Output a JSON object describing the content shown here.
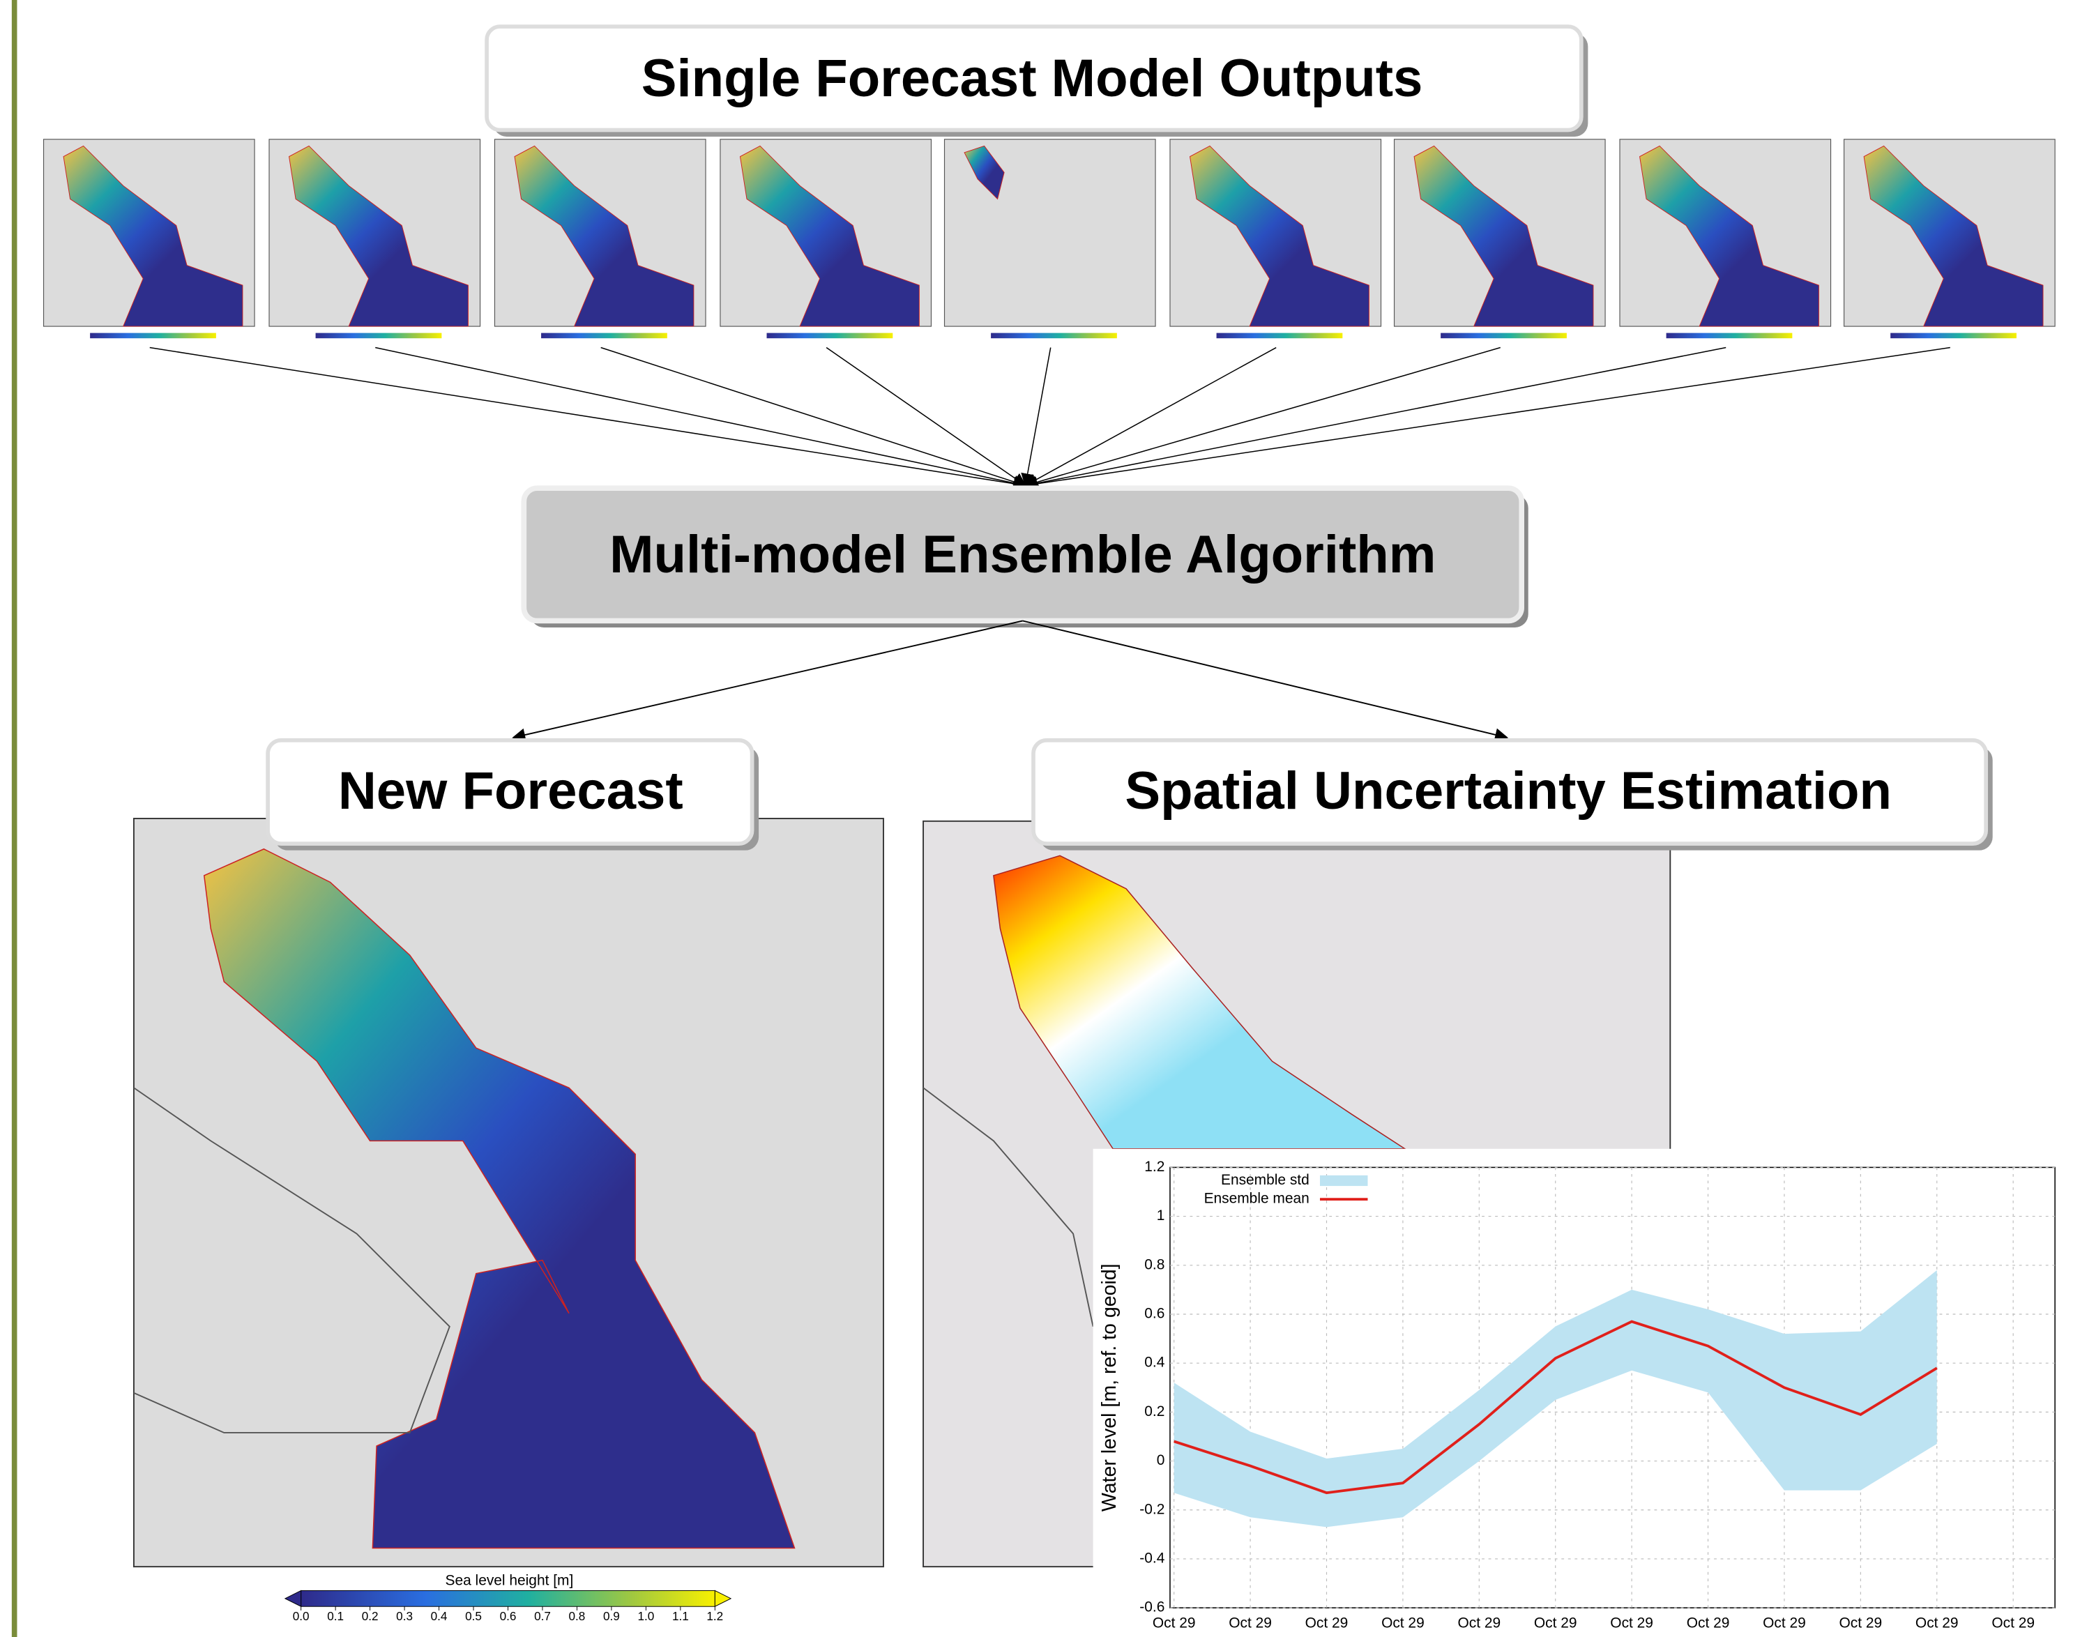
{
  "header": {
    "title": "Single Forecast Model Outputs"
  },
  "algorithm": {
    "label": "Multi-model Ensemble Algorithm"
  },
  "outputs": [
    {
      "label": "New Forecast"
    },
    {
      "label": "Spatial Uncertainty Estimation"
    }
  ],
  "colorbar": {
    "label": "Sea level height [m]",
    "lim": [
      0,
      1.2
    ],
    "ticks": [
      {
        "value": 0,
        "label": "0.0"
      },
      0.1,
      0.2,
      0.3,
      0.4,
      0.5,
      0.6,
      0.7,
      0.8,
      0.9,
      {
        "value": 1,
        "label": "1.0"
      },
      1.1,
      1.2
    ]
  },
  "inset_chart": {
    "type": "line",
    "ylabel": "Water level [m, ref. to geoid]",
    "categories": [
      "Oct 29",
      "Oct 29",
      "Oct 29",
      "Oct 29",
      "Oct 29",
      "Oct 29",
      "Oct 29",
      "Oct 29",
      "Oct 29",
      "Oct 29",
      "Oct 29",
      "Oct 29"
    ],
    "ylim": [
      -0.6,
      1.2
    ],
    "yticks": [
      -0.6,
      -0.4,
      -0.2,
      0,
      0.2,
      0.4,
      0.6,
      0.8,
      1,
      1.2
    ],
    "grid": true,
    "series": [
      {
        "name": "Ensemble std",
        "type": "band",
        "color": "#bde3f2",
        "upper": [
          0.32,
          0.12,
          0.01,
          0.05,
          0.29,
          0.55,
          0.7,
          0.62,
          0.52,
          0.53,
          0.78,
          null
        ],
        "lower": [
          -0.13,
          -0.23,
          -0.27,
          -0.23,
          0.0,
          0.25,
          0.37,
          0.28,
          -0.12,
          -0.12,
          0.07,
          null
        ]
      },
      {
        "name": "Ensemble mean",
        "type": "line",
        "color": "#e0201b",
        "values": [
          0.08,
          -0.02,
          -0.13,
          -0.09,
          0.15,
          0.42,
          0.57,
          0.47,
          0.3,
          0.19,
          0.38,
          null
        ]
      }
    ]
  }
}
